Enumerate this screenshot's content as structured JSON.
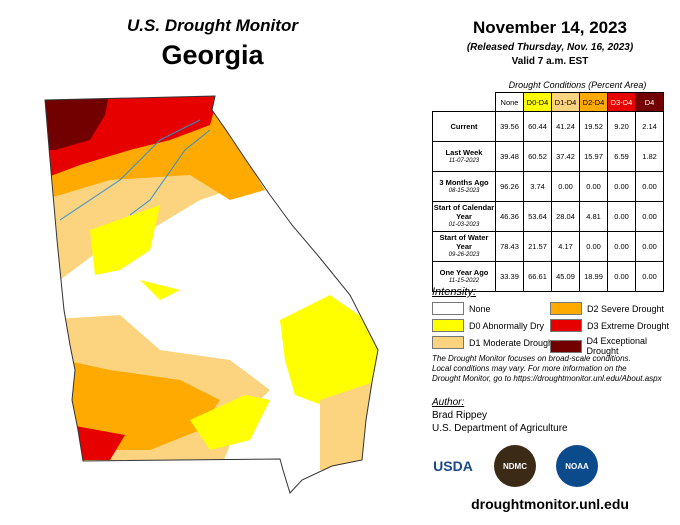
{
  "header": {
    "title": "U.S. Drought Monitor",
    "state": "Georgia"
  },
  "release": {
    "date": "November 14, 2023",
    "released": "(Released Thursday, Nov. 16, 2023)",
    "valid": "Valid 7 a.m. EST"
  },
  "table": {
    "caption": "Drought Conditions (Percent Area)",
    "columns": [
      {
        "label": "None",
        "color": "#ffffff",
        "text": "#000000"
      },
      {
        "label": "D0-D4",
        "color": "#ffff00",
        "text": "#000000"
      },
      {
        "label": "D1-D4",
        "color": "#fcd37f",
        "text": "#000000"
      },
      {
        "label": "D2-D4",
        "color": "#ffaa00",
        "text": "#000000"
      },
      {
        "label": "D3-D4",
        "color": "#e60000",
        "text": "#ffffff"
      },
      {
        "label": "D4",
        "color": "#730000",
        "text": "#ffffff"
      }
    ],
    "rows": [
      {
        "label": "Current",
        "values": [
          "39.56",
          "60.44",
          "41.24",
          "19.52",
          "9.20",
          "2.14"
        ]
      },
      {
        "label": "Last Week",
        "date": "11-07-2023",
        "values": [
          "39.48",
          "60.52",
          "37.42",
          "15.97",
          "6.59",
          "1.82"
        ]
      },
      {
        "label": "3 Months Ago",
        "date": "08-15-2023",
        "values": [
          "96.26",
          "3.74",
          "0.00",
          "0.00",
          "0.00",
          "0.00"
        ]
      },
      {
        "label": "Start of Calendar Year",
        "date": "01-03-2023",
        "values": [
          "46.36",
          "53.64",
          "28.04",
          "4.81",
          "0.00",
          "0.00"
        ]
      },
      {
        "label": "Start of Water Year",
        "date": "09-26-2023",
        "values": [
          "78.43",
          "21.57",
          "4.17",
          "0.00",
          "0.00",
          "0.00"
        ]
      },
      {
        "label": "One Year Ago",
        "date": "11-15-2022",
        "values": [
          "33.39",
          "66.61",
          "45.09",
          "18.99",
          "0.00",
          "0.00"
        ]
      }
    ]
  },
  "legend": {
    "title": "Intensity:",
    "items": [
      {
        "label": "None",
        "color": "#ffffff"
      },
      {
        "label": "D2 Severe Drought",
        "color": "#ffaa00"
      },
      {
        "label": "D0 Abnormally Dry",
        "color": "#ffff00"
      },
      {
        "label": "D3 Extreme Drought",
        "color": "#e60000"
      },
      {
        "label": "D1 Moderate Drought",
        "color": "#fcd37f"
      },
      {
        "label": "D4 Exceptional Drought",
        "color": "#730000"
      }
    ]
  },
  "note": [
    "The Drought Monitor focuses on broad-scale conditions.",
    "Local conditions may vary. For more information on the",
    "Drought Monitor, go to https://droughtmonitor.unl.edu/About.aspx"
  ],
  "author": {
    "heading": "Author:",
    "name": "Brad Rippey",
    "agency": "U.S. Department of Agriculture"
  },
  "logos": [
    "USDA",
    "NDMC",
    "NOAA"
  ],
  "url": "droughtmonitor.unl.edu"
}
